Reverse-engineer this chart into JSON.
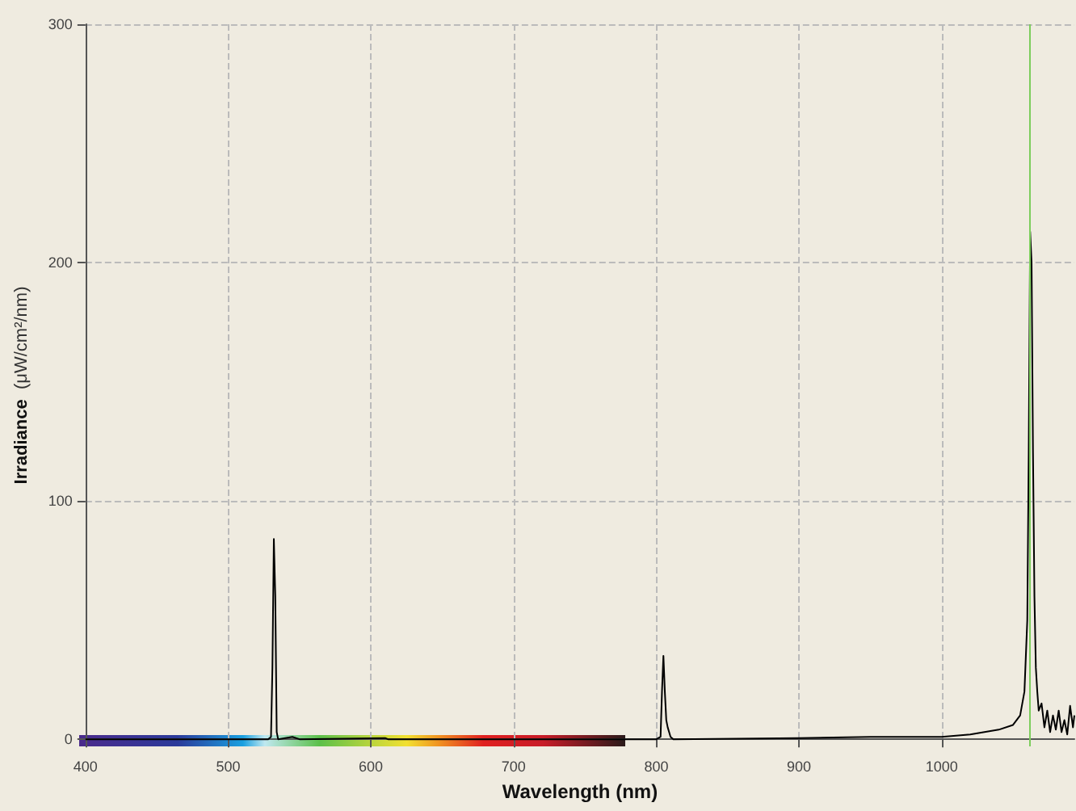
{
  "chart_data": {
    "type": "line",
    "xlabel": "Wavelength (nm)",
    "ylabel": "Irradiance (μW/cm²/nm)",
    "xlim": [
      400,
      1093
    ],
    "xticks": [
      400,
      500,
      600,
      700,
      800,
      900,
      1000
    ],
    "ylim": [
      -3,
      300
    ],
    "yticks": [
      0,
      100,
      200,
      300
    ],
    "grid": true,
    "marker": "none",
    "line_style": "solid",
    "ref_lines": [
      {
        "axis": "x",
        "value": 1062,
        "color": "#7ccd5c"
      }
    ],
    "series": [
      {
        "color": "#000000",
        "x": [
          400,
          500,
          528,
          530,
          531,
          532,
          533,
          534,
          535,
          545,
          550,
          610,
          612,
          800,
          803,
          804,
          805,
          806,
          807,
          808,
          810,
          812,
          900,
          950,
          1000,
          1020,
          1040,
          1050,
          1055,
          1058,
          1060,
          1061,
          1062,
          1063,
          1064,
          1065,
          1066,
          1067,
          1068,
          1070,
          1072,
          1074,
          1076,
          1078,
          1080,
          1082,
          1084,
          1086,
          1088,
          1090,
          1092,
          1093
        ],
        "values": [
          0,
          0,
          0,
          1,
          30,
          84,
          60,
          3,
          0,
          1,
          0,
          0.5,
          0,
          0,
          1,
          20,
          35,
          20,
          8,
          5,
          1,
          0,
          0.5,
          1,
          1,
          2,
          4,
          6,
          10,
          20,
          50,
          120,
          213,
          200,
          120,
          60,
          30,
          20,
          12,
          15,
          5,
          12,
          3,
          10,
          4,
          12,
          3,
          8,
          2,
          14,
          5,
          10
        ]
      }
    ]
  }
}
